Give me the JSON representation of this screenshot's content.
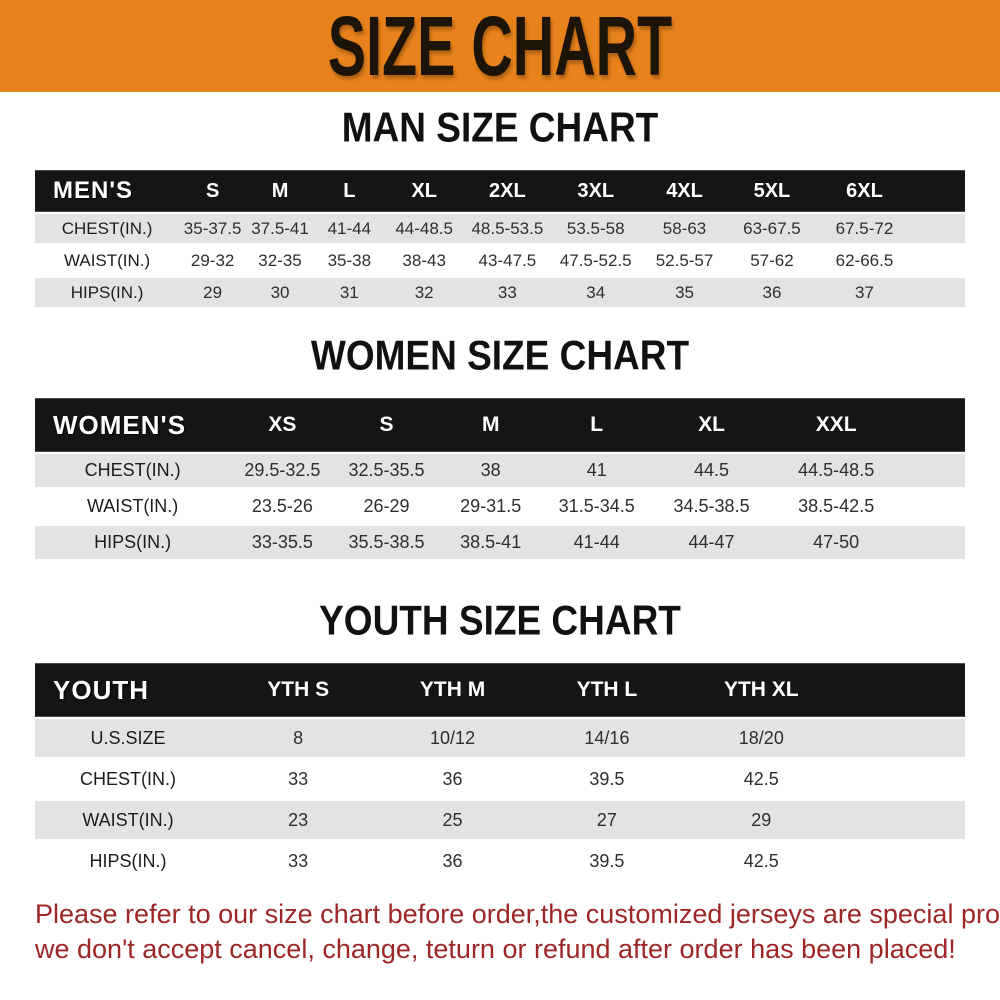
{
  "banner": {
    "title": "SIZE CHART"
  },
  "colors": {
    "banner_bg": "#E8821C",
    "header_row_bg": "#151515",
    "header_row_text": "#FFFFFF",
    "row_alt_bg": "#E3E3E3",
    "footer_text": "#9D2626",
    "heading_text": "#111111"
  },
  "chart_data": [
    {
      "type": "table",
      "title": "MAN SIZE CHART",
      "corner": "MEN'S",
      "columns": [
        "S",
        "M",
        "L",
        "XL",
        "2XL",
        "3XL",
        "4XL",
        "5XL",
        "6XL"
      ],
      "rows": [
        {
          "label": "CHEST(IN.)",
          "values": [
            "35-37.5",
            "37.5-41",
            "41-44",
            "44-48.5",
            "48.5-53.5",
            "53.5-58",
            "58-63",
            "63-67.5",
            "67.5-72"
          ]
        },
        {
          "label": "WAIST(IN.)",
          "values": [
            "29-32",
            "32-35",
            "35-38",
            "38-43",
            "43-47.5",
            "47.5-52.5",
            "52.5-57",
            "57-62",
            "62-66.5"
          ]
        },
        {
          "label": "HIPS(IN.)",
          "values": [
            "29",
            "30",
            "31",
            "32",
            "33",
            "34",
            "35",
            "36",
            "37"
          ]
        }
      ]
    },
    {
      "type": "table",
      "title": "WOMEN SIZE CHART",
      "corner": "WOMEN'S",
      "columns": [
        "XS",
        "S",
        "M",
        "L",
        "XL",
        "XXL"
      ],
      "rows": [
        {
          "label": "CHEST(IN.)",
          "values": [
            "29.5-32.5",
            "32.5-35.5",
            "38",
            "41",
            "44.5",
            "44.5-48.5"
          ]
        },
        {
          "label": "WAIST(IN.)",
          "values": [
            "23.5-26",
            "26-29",
            "29-31.5",
            "31.5-34.5",
            "34.5-38.5",
            "38.5-42.5"
          ]
        },
        {
          "label": "HIPS(IN.)",
          "values": [
            "33-35.5",
            "35.5-38.5",
            "38.5-41",
            "41-44",
            "44-47",
            "47-50"
          ]
        }
      ]
    },
    {
      "type": "table",
      "title": "YOUTH SIZE CHART",
      "corner": "YOUTH",
      "columns": [
        "YTH S",
        "YTH M",
        "YTH L",
        "YTH XL"
      ],
      "rows": [
        {
          "label": "U.S.SIZE",
          "values": [
            "8",
            "10/12",
            "14/16",
            "18/20"
          ]
        },
        {
          "label": "CHEST(IN.)",
          "values": [
            "33",
            "36",
            "39.5",
            "42.5"
          ]
        },
        {
          "label": "WAIST(IN.)",
          "values": [
            "23",
            "25",
            "27",
            "29"
          ]
        },
        {
          "label": "HIPS(IN.)",
          "values": [
            "33",
            "36",
            "39.5",
            "42.5"
          ]
        }
      ]
    }
  ],
  "footer": {
    "lines": [
      "Please refer to our size chart before order,the customized jerseys are special products,",
      "we don't accept cancel, change, teturn or refund after order has been placed!"
    ]
  }
}
